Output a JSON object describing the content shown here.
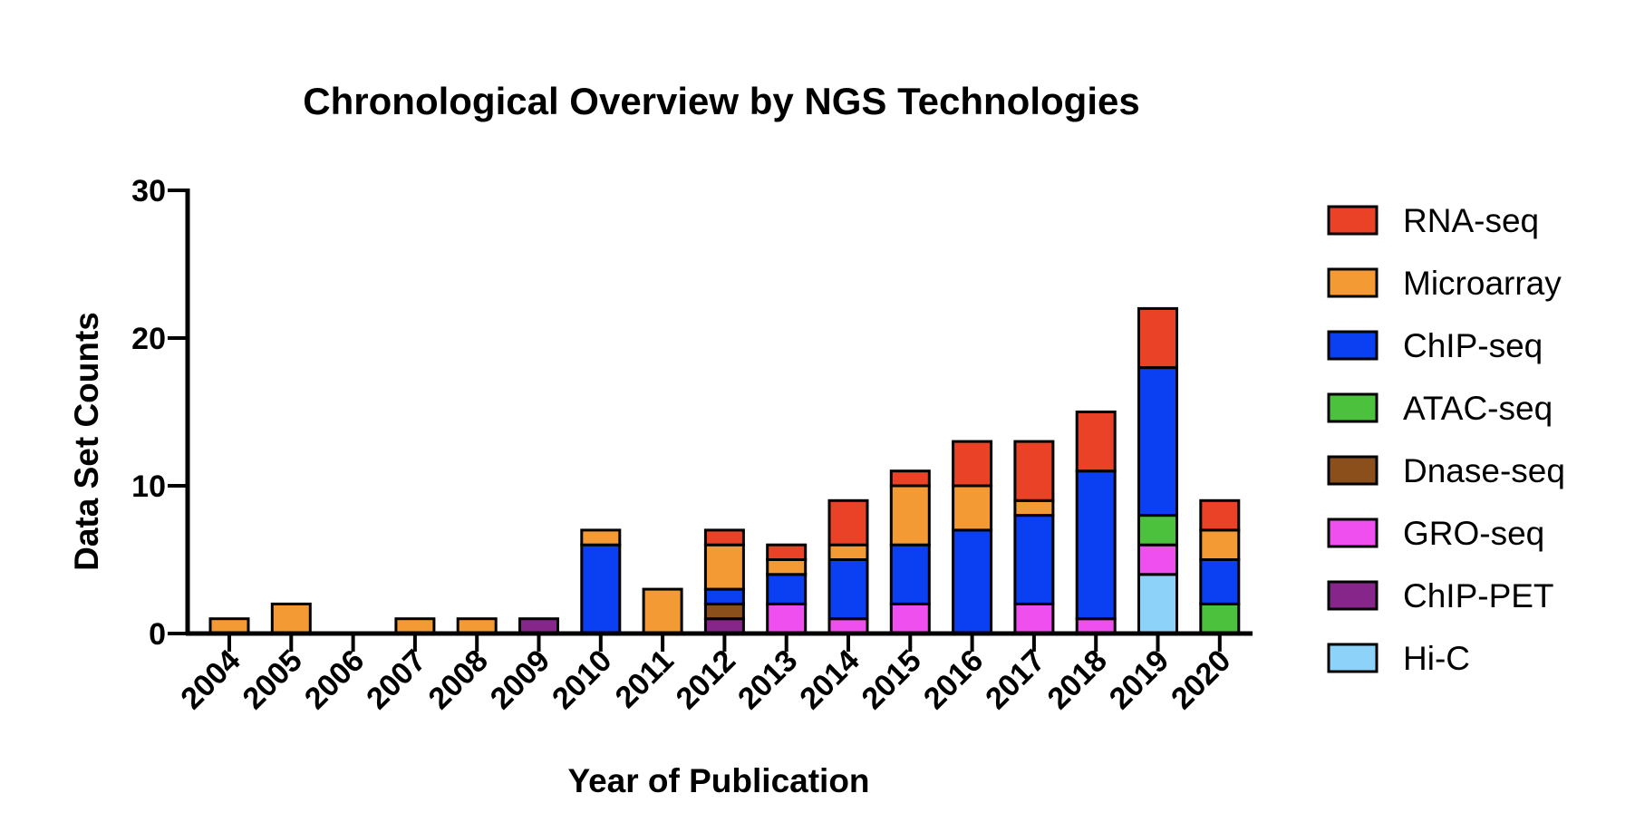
{
  "chart_data": {
    "type": "bar",
    "stacked": true,
    "title": "Chronological Overview by NGS Technologies",
    "xlabel": "Year of Publication",
    "ylabel": "Data Set Counts",
    "ylim": [
      0,
      30
    ],
    "yticks": [
      "0",
      "10",
      "20",
      "30"
    ],
    "categories": [
      "2004",
      "2005",
      "2006",
      "2007",
      "2008",
      "2009",
      "2010",
      "2011",
      "2012",
      "2013",
      "2014",
      "2015",
      "2016",
      "2017",
      "2018",
      "2019",
      "2020"
    ],
    "legend_position": "right",
    "series": [
      {
        "name": "Hi-C",
        "color": "#8DD3F9",
        "values": [
          0,
          0,
          0,
          0,
          0,
          0,
          0,
          0,
          0,
          0,
          0,
          0,
          0,
          0,
          0,
          4,
          0
        ]
      },
      {
        "name": "ChIP-PET",
        "color": "#86268A",
        "values": [
          0,
          0,
          0,
          0,
          0,
          1,
          0,
          0,
          1,
          0,
          0,
          0,
          0,
          0,
          0,
          0,
          0
        ]
      },
      {
        "name": "GRO-seq",
        "color": "#EF4FEF",
        "values": [
          0,
          0,
          0,
          0,
          0,
          0,
          0,
          0,
          0,
          2,
          1,
          2,
          0,
          2,
          1,
          2,
          0
        ]
      },
      {
        "name": "Dnase-seq",
        "color": "#8A4F1B",
        "values": [
          0,
          0,
          0,
          0,
          0,
          0,
          0,
          0,
          1,
          0,
          0,
          0,
          0,
          0,
          0,
          0,
          0
        ]
      },
      {
        "name": "ATAC-seq",
        "color": "#4CC13D",
        "values": [
          0,
          0,
          0,
          0,
          0,
          0,
          0,
          0,
          0,
          0,
          0,
          0,
          0,
          0,
          0,
          2,
          2
        ]
      },
      {
        "name": "ChIP-seq",
        "color": "#0A3FF2",
        "values": [
          0,
          0,
          0,
          0,
          0,
          0,
          6,
          0,
          1,
          2,
          4,
          4,
          7,
          6,
          10,
          10,
          3
        ]
      },
      {
        "name": "Microarray",
        "color": "#F39A35",
        "values": [
          1,
          2,
          0,
          1,
          1,
          0,
          1,
          3,
          3,
          1,
          1,
          4,
          3,
          1,
          0,
          0,
          2
        ]
      },
      {
        "name": "RNA-seq",
        "color": "#EA4227",
        "values": [
          0,
          0,
          0,
          0,
          0,
          0,
          0,
          0,
          1,
          1,
          3,
          1,
          3,
          4,
          4,
          4,
          2
        ]
      }
    ],
    "legend_order": [
      "RNA-seq",
      "Microarray",
      "ChIP-seq",
      "ATAC-seq",
      "Dnase-seq",
      "GRO-seq",
      "ChIP-PET",
      "Hi-C"
    ]
  }
}
